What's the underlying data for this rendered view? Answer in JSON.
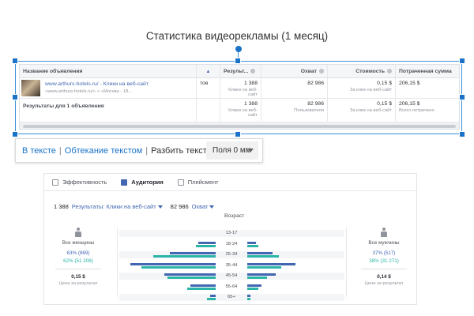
{
  "caption": "Статистика видеорекламы (1 месяц)",
  "ads_table": {
    "columns": [
      "Название объявления",
      "Результ...",
      "Охват",
      "Стоимость",
      "Потраченная сумма"
    ],
    "sort_indicator": "▲",
    "row": {
      "link": "www.arthurs-hotels.ru/ - Клики на веб-сайт",
      "url": "«www.arthurs-hotels.ru/» > «Москва - 18...",
      "overflow": "тов",
      "results": "1 388",
      "results_sub": "Клики на веб-сайт",
      "reach": "82 986",
      "cost": "0,15 $",
      "cost_sub": "За клик на веб-сайт",
      "spent": "206,15 $"
    },
    "total": {
      "label": "Результаты для 1 объявления",
      "results": "1 388",
      "results_sub": "Клики на веб-сайт",
      "reach": "82 986",
      "reach_sub": "Пользователи",
      "cost": "0,15 $",
      "cost_sub": "За клик на веб-сайт",
      "spent": "206,15 $",
      "spent_sub": "Всего потрачено"
    }
  },
  "wrap_toolbar": {
    "in_text": "В тексте",
    "wrap_text": "Обтекание текстом",
    "break_text": "Разбить текст",
    "separator": "|",
    "margin": "Поля 0 мм"
  },
  "audience": {
    "tabs": [
      "Эффективность",
      "Аудитория",
      "Плейсмент"
    ],
    "active_tab": "Аудитория",
    "results_count": "1 388",
    "results_label": "Результаты: Клики на веб-сайт",
    "reach_count": "82 986",
    "reach_label": "Охват",
    "axis_title": "Возраст",
    "women": {
      "label": "Все женщины",
      "pct_results": "63% (869)",
      "pct_reach": "62% (51 208)",
      "cost": "0,15 $",
      "cost_label": "Цена за результат"
    },
    "men": {
      "label": "Все мужчины",
      "pct_results": "37% (517)",
      "pct_reach": "38% (31 271)",
      "cost": "0,14 $",
      "cost_label": "Цена за результат"
    },
    "colors": {
      "results": "#4267b2",
      "reach": "#2bb5a8"
    }
  },
  "chart_data": {
    "type": "bar",
    "categories": [
      "13-17",
      "18-24",
      "25-34",
      "35-44",
      "45-54",
      "55-64",
      "65+"
    ],
    "series": [
      {
        "name": "Результаты",
        "women": [
          0,
          6,
          16,
          30,
          18,
          9,
          2
        ],
        "men": [
          0,
          3,
          9,
          17,
          10,
          5,
          1
        ]
      },
      {
        "name": "Охват",
        "women": [
          0,
          7,
          22,
          26,
          17,
          10,
          3
        ],
        "men": [
          0,
          4,
          11,
          12,
          7,
          4,
          1
        ]
      }
    ]
  }
}
